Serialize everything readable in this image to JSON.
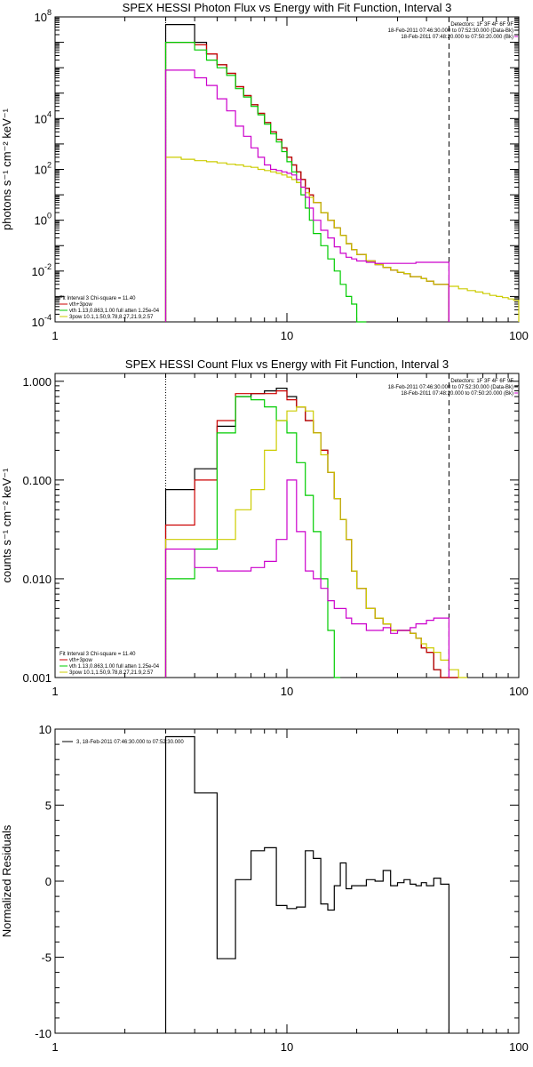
{
  "chart_data": [
    {
      "type": "line",
      "title": "SPEX HESSI Photon Flux vs Energy with Fit Function, Interval 3",
      "ylabel": "photons s⁻¹ cm⁻² keV⁻¹",
      "xlabel": "",
      "x_scale": "log",
      "y_scale": "log",
      "xlim": [
        1,
        100
      ],
      "ylim": [
        0.0001,
        100000000
      ],
      "xtick_labels": [
        {
          "v": 1,
          "t": "1"
        },
        {
          "v": 10,
          "t": "10"
        },
        {
          "v": 100,
          "t": "100"
        }
      ],
      "ytick_labels": [
        {
          "v": 0.0001,
          "base": "10",
          "exp": "-4"
        },
        {
          "v": 0.01,
          "base": "10",
          "exp": "-2"
        },
        {
          "v": 1,
          "base": "10",
          "exp": "0"
        },
        {
          "v": 100,
          "base": "10",
          "exp": "2"
        },
        {
          "v": 10000,
          "base": "10",
          "exp": "4"
        },
        {
          "v": 100000000,
          "base": "10",
          "exp": "8"
        }
      ],
      "vlines": [
        {
          "x": 3,
          "style": "dotted",
          "color": "#000000"
        },
        {
          "x": 50,
          "style": "dashed",
          "color": "#000000"
        }
      ],
      "legend_topright": [
        {
          "text": "Detectors: 1F 3F 4F 6F 9F",
          "color": "#000000"
        },
        {
          "text": "18-Feb-2011 07:46:30.000 to 07:52:30.000 (Data-Bk)",
          "color": "#000000"
        },
        {
          "text": "18-Feb-2011 07:48:20.000 to 07:50:20.000 (Bk)",
          "color": "#cc00cc"
        }
      ],
      "legend_bottomleft": [
        {
          "text": "Fit Interval 3   Chi-square = 11.40",
          "color": "#000000"
        },
        {
          "text": "vth+3pow",
          "color": "#cc0000"
        },
        {
          "text": "vth 1.13,0.863,1.00  full atten 1.25e-04",
          "color": "#00cc00"
        },
        {
          "text": "3pow 10.1,1.50,9.78,8.27,21.9,2.57",
          "color": "#cccc00"
        }
      ],
      "series": [
        {
          "color": "#000000",
          "edges": [
            3,
            3.5,
            4,
            4.5,
            5,
            5.5,
            6,
            6.5,
            7,
            7.5,
            8,
            8.5,
            9,
            9.5,
            10,
            10.5,
            11,
            11.5,
            12,
            12.5,
            13,
            14,
            15,
            16,
            17,
            18,
            19,
            20,
            22,
            24,
            26,
            28,
            30,
            32,
            34,
            36,
            38,
            40,
            43,
            46,
            50
          ],
          "values": [
            50000000,
            50000000,
            10000000,
            3500000,
            1300000,
            600000,
            180000,
            80000,
            35000,
            16000,
            7000,
            3000,
            1500,
            700,
            300,
            150,
            80,
            40,
            18,
            10,
            5,
            2,
            1,
            0.5,
            0.25,
            0.12,
            0.07,
            0.045,
            0.025,
            0.018,
            0.014,
            0.011,
            0.009,
            0.008,
            0.006,
            0.006,
            0.005,
            0.004,
            0.003,
            0.003
          ]
        },
        {
          "color": "#cc0000",
          "edges": [
            3,
            3.5,
            4,
            4.5,
            5,
            5.5,
            6,
            6.5,
            7,
            7.5,
            8,
            8.5,
            9,
            9.5,
            10,
            10.5,
            11,
            11.5,
            12,
            12.5,
            13,
            14,
            15,
            16,
            17,
            18,
            19,
            20,
            22,
            24,
            26,
            28,
            30,
            32,
            34,
            36,
            38,
            40,
            43,
            46,
            50
          ],
          "values": [
            10000000,
            10000000,
            8000000,
            3500000,
            1300000,
            600000,
            180000,
            80000,
            35000,
            16000,
            7000,
            3000,
            1500,
            700,
            300,
            150,
            80,
            40,
            18,
            10,
            5,
            2,
            1,
            0.5,
            0.25,
            0.12,
            0.07,
            0.045,
            0.025,
            0.018,
            0.014,
            0.011,
            0.009,
            0.008,
            0.006,
            0.006,
            0.005,
            0.004,
            0.003,
            0.003
          ]
        },
        {
          "color": "#00cc00",
          "edges": [
            3,
            3.5,
            4,
            4.5,
            5,
            5.5,
            6,
            6.5,
            7,
            7.5,
            8,
            8.5,
            9,
            9.5,
            10,
            10.5,
            11,
            11.5,
            12,
            12.5,
            13,
            14,
            15,
            16,
            17,
            18,
            19,
            20,
            22
          ],
          "values": [
            10000000,
            10000000,
            5000000,
            2000000,
            1000000,
            500000,
            150000,
            70000,
            30000,
            14000,
            6000,
            2500,
            1200,
            500,
            200,
            80,
            30,
            10,
            3,
            1,
            0.3,
            0.1,
            0.03,
            0.01,
            0.003,
            0.001,
            0.0005,
            0.0001
          ]
        },
        {
          "color": "#cccc00",
          "edges": [
            3,
            3.5,
            4,
            4.5,
            5,
            5.5,
            6,
            6.5,
            7,
            7.5,
            8,
            8.5,
            9,
            9.5,
            10,
            10.5,
            11,
            11.5,
            12,
            12.5,
            13,
            14,
            15,
            16,
            17,
            18,
            19,
            20,
            22,
            24,
            26,
            28,
            30,
            32,
            34,
            36,
            38,
            40,
            43,
            46,
            50,
            55,
            60,
            65,
            70,
            75,
            80,
            85,
            90,
            95,
            100
          ],
          "values": [
            300,
            250,
            220,
            200,
            180,
            160,
            150,
            130,
            120,
            100,
            90,
            80,
            70,
            60,
            50,
            40,
            30,
            20,
            12,
            8,
            5,
            2,
            1,
            0.5,
            0.25,
            0.12,
            0.07,
            0.045,
            0.025,
            0.018,
            0.014,
            0.011,
            0.009,
            0.008,
            0.006,
            0.006,
            0.005,
            0.004,
            0.003,
            0.003,
            0.0025,
            0.002,
            0.0017,
            0.0015,
            0.0013,
            0.0011,
            0.001,
            0.0009,
            0.0008,
            0.0007
          ]
        },
        {
          "color": "#cc00cc",
          "edges": [
            3,
            3.5,
            4,
            4.5,
            5,
            5.5,
            6,
            6.5,
            7,
            7.5,
            8,
            8.5,
            9,
            9.5,
            10,
            10.5,
            11,
            11.5,
            12,
            12.5,
            13,
            14,
            15,
            16,
            17,
            18,
            19,
            20,
            22,
            24,
            26,
            28,
            30,
            32,
            34,
            36,
            38,
            40,
            43,
            46,
            50
          ],
          "values": [
            800000,
            800000,
            400000,
            200000,
            60000,
            20000,
            5000,
            2000,
            700,
            300,
            150,
            100,
            90,
            80,
            70,
            60,
            40,
            20,
            8,
            3,
            1,
            0.4,
            0.2,
            0.09,
            0.05,
            0.035,
            0.03,
            0.025,
            0.022,
            0.02,
            0.02,
            0.02,
            0.02,
            0.02,
            0.02,
            0.022,
            0.022,
            0.022,
            0.022,
            0.022
          ]
        }
      ]
    },
    {
      "type": "line",
      "title": "SPEX HESSI Count Flux vs Energy with Fit Function, Interval 3",
      "ylabel": "counts s⁻¹ cm⁻² keV⁻¹",
      "xlabel": "",
      "x_scale": "log",
      "y_scale": "log",
      "xlim": [
        1,
        100
      ],
      "ylim": [
        0.001,
        1.2
      ],
      "xtick_labels": [
        {
          "v": 1,
          "t": "1"
        },
        {
          "v": 10,
          "t": "10"
        },
        {
          "v": 100,
          "t": "100"
        }
      ],
      "ytick_labels": [
        {
          "v": 0.001,
          "t": "0.001"
        },
        {
          "v": 0.01,
          "t": "0.010"
        },
        {
          "v": 0.1,
          "t": "0.100"
        },
        {
          "v": 1,
          "t": "1.000"
        }
      ],
      "vlines": [
        {
          "x": 3,
          "style": "dotted",
          "color": "#000000"
        },
        {
          "x": 50,
          "style": "dashed",
          "color": "#000000"
        }
      ],
      "legend_topright": [
        {
          "text": "Detectors: 1F 3F 4F 6F 9F",
          "color": "#000000"
        },
        {
          "text": "18-Feb-2011 07:46:30.000 to 07:52:30.000 (Data-Bk)",
          "color": "#000000"
        },
        {
          "text": "18-Feb-2011 07:48:20.000 to 07:50:20.000 (Bk)",
          "color": "#cc00cc"
        }
      ],
      "legend_bottomleft": [
        {
          "text": "Fit Interval 3   Chi-square = 11.40",
          "color": "#000000"
        },
        {
          "text": "vth+3pow",
          "color": "#cc0000"
        },
        {
          "text": "vth 1.13,0.863,1.00  full atten 1.25e-04",
          "color": "#00cc00"
        },
        {
          "text": "3pow 10.1,1.50,9.78,8.27,21.9,2.57",
          "color": "#cccc00"
        }
      ],
      "series": [
        {
          "color": "#000000",
          "edges": [
            3,
            4,
            5,
            6,
            7,
            8,
            9,
            10,
            11,
            12,
            13,
            14,
            15,
            16,
            17,
            18,
            19,
            20,
            22,
            24,
            26,
            28,
            30,
            32,
            34,
            36,
            38,
            40,
            43,
            46,
            50,
            55
          ],
          "values": [
            0.08,
            0.13,
            0.35,
            0.7,
            0.75,
            0.8,
            0.85,
            0.7,
            0.55,
            0.4,
            0.3,
            0.2,
            0.12,
            0.065,
            0.04,
            0.025,
            0.012,
            0.008,
            0.005,
            0.004,
            0.0035,
            0.003,
            0.003,
            0.003,
            0.0028,
            0.0025,
            0.002,
            0.0018,
            0.0012,
            0.001,
            0.001
          ]
        },
        {
          "color": "#cc0000",
          "edges": [
            3,
            4,
            5,
            6,
            7,
            8,
            9,
            10,
            11,
            12,
            13,
            14,
            15,
            16,
            17,
            18,
            19,
            20,
            22,
            24,
            26,
            28,
            30,
            32,
            34,
            36,
            38,
            40,
            43,
            46,
            50,
            55
          ],
          "values": [
            0.035,
            0.1,
            0.4,
            0.75,
            0.75,
            0.75,
            0.8,
            0.65,
            0.55,
            0.4,
            0.3,
            0.2,
            0.12,
            0.065,
            0.04,
            0.025,
            0.012,
            0.008,
            0.005,
            0.004,
            0.0035,
            0.003,
            0.003,
            0.003,
            0.0028,
            0.0025,
            0.002,
            0.0018,
            0.0012,
            0.001,
            0.001
          ]
        },
        {
          "color": "#00cc00",
          "edges": [
            3,
            4,
            5,
            6,
            7,
            8,
            9,
            10,
            11,
            12,
            13,
            14,
            15,
            16,
            17
          ],
          "values": [
            0.01,
            0.02,
            0.3,
            0.7,
            0.65,
            0.55,
            0.4,
            0.3,
            0.15,
            0.07,
            0.03,
            0.01,
            0.003,
            0.001
          ]
        },
        {
          "color": "#cccc00",
          "edges": [
            3,
            4,
            5,
            6,
            7,
            8,
            9,
            10,
            11,
            12,
            13,
            14,
            15,
            16,
            17,
            18,
            19,
            20,
            22,
            24,
            26,
            28,
            30,
            32,
            34,
            36,
            38,
            40,
            43,
            46,
            50,
            55,
            60
          ],
          "values": [
            0.025,
            0.025,
            0.025,
            0.05,
            0.08,
            0.2,
            0.4,
            0.5,
            0.55,
            0.5,
            0.3,
            0.18,
            0.12,
            0.065,
            0.04,
            0.025,
            0.012,
            0.008,
            0.005,
            0.004,
            0.0035,
            0.003,
            0.003,
            0.003,
            0.0028,
            0.0025,
            0.0022,
            0.002,
            0.0018,
            0.0015,
            0.0012,
            0.001
          ]
        },
        {
          "color": "#cc00cc",
          "edges": [
            3,
            4,
            5,
            6,
            7,
            8,
            9,
            10,
            11,
            12,
            13,
            14,
            15,
            16,
            17,
            18,
            19,
            20,
            22,
            24,
            26,
            28,
            30,
            32,
            34,
            36,
            38,
            40,
            43,
            46,
            50
          ],
          "values": [
            0.02,
            0.013,
            0.012,
            0.012,
            0.013,
            0.015,
            0.025,
            0.1,
            0.03,
            0.012,
            0.01,
            0.008,
            0.006,
            0.005,
            0.005,
            0.004,
            0.0035,
            0.0035,
            0.003,
            0.003,
            0.0032,
            0.0028,
            0.003,
            0.003,
            0.0032,
            0.0035,
            0.0035,
            0.0038,
            0.004,
            0.004
          ]
        }
      ]
    },
    {
      "type": "line",
      "title": "",
      "ylabel": "Normalized Residuals",
      "xlabel": "",
      "x_scale": "log",
      "y_scale": "linear",
      "xlim": [
        1,
        100
      ],
      "ylim": [
        -10,
        10
      ],
      "xtick_labels": [
        {
          "v": 1,
          "t": "1"
        },
        {
          "v": 10,
          "t": "10"
        },
        {
          "v": 100,
          "t": "100"
        }
      ],
      "ytick_labels": [
        {
          "v": -10,
          "t": "-10"
        },
        {
          "v": -5,
          "t": "-5"
        },
        {
          "v": 0,
          "t": "0"
        },
        {
          "v": 5,
          "t": "5"
        },
        {
          "v": 10,
          "t": "10"
        }
      ],
      "vlines": [],
      "legend_topright": [],
      "legend_topleft": [
        {
          "text": "3, 18-Feb-2011 07:46:30.000 to 07:52:30.000",
          "color": "#000000"
        }
      ],
      "legend_bottomleft": [],
      "series": [
        {
          "color": "#000000",
          "edges": [
            3,
            4,
            5,
            6,
            7,
            8,
            9,
            10,
            11,
            12,
            13,
            14,
            15,
            16,
            17,
            18,
            19,
            20,
            22,
            24,
            26,
            28,
            30,
            32,
            34,
            36,
            38,
            40,
            43,
            46,
            50
          ],
          "values": [
            9.5,
            5.8,
            -5.1,
            0.1,
            2.0,
            2.2,
            -1.6,
            -1.8,
            -1.7,
            2.0,
            1.5,
            -1.5,
            -1.9,
            -0.3,
            1.2,
            -0.5,
            -0.3,
            -0.3,
            0.1,
            0.0,
            0.7,
            -0.3,
            -0.1,
            0.1,
            -0.2,
            -0.3,
            -0.1,
            -0.3,
            0.2,
            -0.2
          ],
          "drop_to_bottom": true
        }
      ]
    }
  ]
}
